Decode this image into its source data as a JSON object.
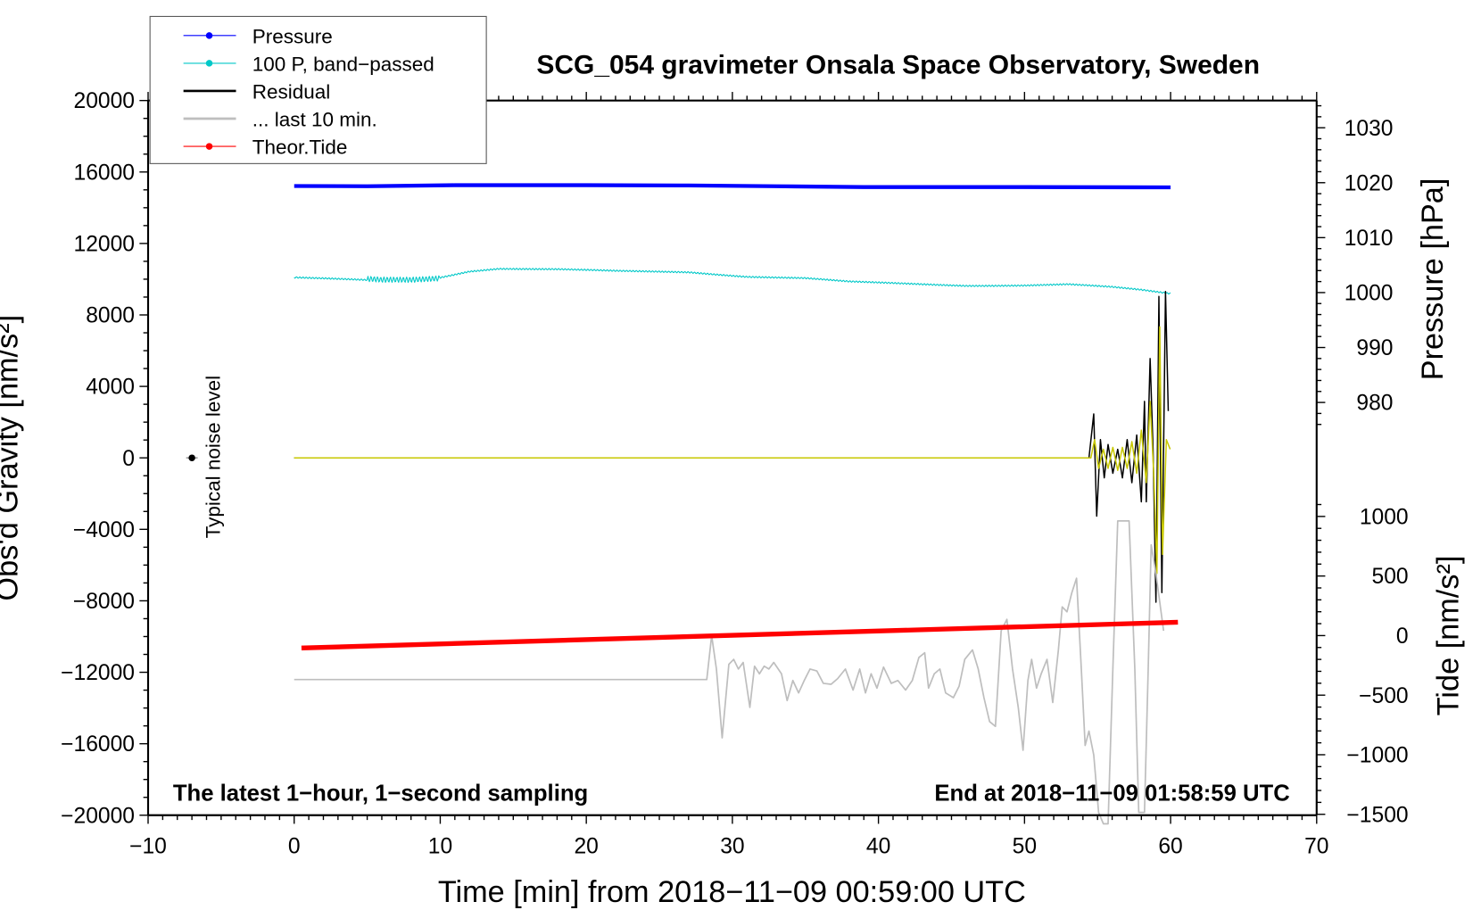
{
  "chart_data": {
    "type": "line",
    "title": "SCG_054 gravimeter Onsala Space Observatory, Sweden",
    "xlabel": "Time [min] from 2018−11−09 00:59:00 UTC",
    "ylabel_left": "Obs'd Gravity [nm/s²]",
    "ylabel_right_top": "Pressure [hPa]",
    "ylabel_right_bottom": "Tide [nm/s²]",
    "xlim": [
      -10,
      70
    ],
    "ylim_left": [
      -20000,
      20000
    ],
    "pressure_axis": {
      "ticks": [
        980,
        990,
        1000,
        1010,
        1020,
        1030
      ],
      "unit": "hPa",
      "range_top": 1034.9
    },
    "tide_axis": {
      "ticks": [
        -1500,
        -1000,
        -500,
        0,
        500,
        1000
      ]
    },
    "x_ticks": [
      -10,
      0,
      10,
      20,
      30,
      40,
      50,
      60,
      70
    ],
    "x_tick_labels": [
      "−10",
      "0",
      "10",
      "20",
      "30",
      "40",
      "50",
      "60",
      "70"
    ],
    "y_ticks": [
      -20000,
      -16000,
      -12000,
      -8000,
      -4000,
      0,
      4000,
      8000,
      12000,
      16000,
      20000
    ],
    "y_tick_labels": [
      "−20000",
      "−16000",
      "−12000",
      "−8000",
      "−4000",
      "0",
      "4000",
      "8000",
      "12000",
      "16000",
      "20000"
    ],
    "tide_tick_labels": [
      "−1500",
      "−1000",
      "−500",
      "0",
      "500",
      "1000"
    ],
    "annotations": {
      "bottom_left": "The latest 1−hour, 1−second sampling",
      "bottom_right": "End at 2018−11−09 01:58:59 UTC",
      "noise_label": "Typical noise level"
    },
    "legend": {
      "placement": "top-left",
      "entries": [
        {
          "label": "Pressure",
          "color": "#0000ff",
          "marker": "dot"
        },
        {
          "label": "100 P, band−passed",
          "color": "#00c8c8",
          "marker": "dot"
        },
        {
          "label": "Residual",
          "color": "#000000",
          "marker": "line"
        },
        {
          "label": "... last 10 min.",
          "color": "#bebebe",
          "marker": "line"
        },
        {
          "label": "Theor.Tide",
          "color": "#ff0000",
          "marker": "dot"
        }
      ]
    },
    "series": [
      {
        "name": "Pressure",
        "axis": "pressure",
        "color": "#0000ff",
        "x": [
          0,
          5,
          11,
          20,
          27,
          33,
          39,
          45,
          50,
          60
        ],
        "y": [
          1019.4,
          1019.35,
          1019.55,
          1019.55,
          1019.5,
          1019.35,
          1019.2,
          1019.2,
          1019.2,
          1019.15
        ]
      },
      {
        "name": "100 P, band−passed",
        "axis": "gravity",
        "color": "#00c8c8",
        "x": [
          0,
          3,
          6,
          8,
          10,
          12,
          14,
          18,
          22,
          27,
          31,
          35,
          38,
          42,
          46,
          50,
          53,
          56,
          58,
          60
        ],
        "y": [
          10100,
          10000,
          9900,
          9950,
          10100,
          10450,
          10600,
          10550,
          10450,
          10400,
          10150,
          10050,
          9850,
          9750,
          9650,
          9650,
          9700,
          9550,
          9400,
          9200
        ]
      },
      {
        "name": "Residual",
        "axis": "gravity",
        "color": "#000000",
        "x": [
          0,
          54.41,
          54.74,
          54.94,
          55.2,
          55.46,
          55.72,
          56.05,
          56.38,
          56.7,
          57.03,
          57.35,
          57.68,
          58.0,
          58.21,
          58.34,
          58.6,
          58.8,
          59.0,
          59.2,
          59.4,
          59.65,
          59.84
        ],
        "y": [
          0,
          0,
          2460,
          -3260,
          1020,
          -1120,
          750,
          -860,
          480,
          -1120,
          1020,
          -1390,
          1280,
          -2460,
          3160,
          -2460,
          5560,
          480,
          -8080,
          9040,
          -7540,
          9310,
          2620
        ]
      },
      {
        "name": "",
        "axis": "gravity",
        "color": "#c8c800",
        "x": [
          0,
          54.54,
          54.8,
          55.07,
          55.4,
          55.72,
          56.05,
          56.38,
          56.7,
          57.03,
          57.35,
          57.68,
          58.0,
          58.34,
          58.6,
          58.86,
          59.06,
          59.26,
          59.45,
          59.71,
          59.97
        ],
        "y": [
          0,
          0,
          1020,
          -590,
          480,
          -590,
          590,
          -700,
          590,
          -590,
          910,
          -860,
          1550,
          -1390,
          3160,
          -1120,
          -6470,
          7330,
          -5400,
          1020,
          480
        ]
      },
      {
        "name": "... last 10 min.",
        "axis": "tide",
        "color": "#bebebe",
        "x": [
          0,
          28.25,
          28.58,
          28.91,
          29.3,
          29.76,
          30.09,
          30.41,
          30.74,
          31.2,
          31.52,
          31.85,
          32.18,
          32.5,
          32.83,
          33.36,
          33.75,
          34.14,
          34.53,
          34.92,
          35.32,
          35.78,
          36.23,
          36.76,
          37.21,
          37.74,
          38.26,
          38.72,
          39.11,
          39.5,
          39.9,
          40.35,
          40.88,
          41.33,
          41.86,
          42.32,
          42.77,
          43.17,
          43.43,
          43.82,
          44.21,
          44.6,
          45.13,
          45.52,
          45.91,
          46.44,
          46.83,
          47.22,
          47.61,
          48.01,
          48.4,
          48.79,
          49.18,
          49.57,
          49.9,
          50.23,
          50.49,
          50.82,
          51.14,
          51.54,
          51.93,
          52.32,
          52.58,
          52.91,
          53.24,
          53.56,
          53.89,
          54.15,
          54.41,
          54.74,
          55.07,
          55.4,
          55.72,
          56.05,
          56.38,
          57.16,
          57.55,
          57.82,
          58.21,
          58.47,
          58.67,
          59.0,
          59.52
        ],
        "y": [
          -369,
          -369,
          0,
          -281,
          -858,
          -241,
          -200,
          -281,
          -225,
          -602,
          -257,
          -321,
          -257,
          -281,
          -225,
          -321,
          -545,
          -377,
          -481,
          -377,
          -281,
          -297,
          -401,
          -409,
          -361,
          -281,
          -457,
          -281,
          -481,
          -321,
          -441,
          -265,
          -401,
          -377,
          -457,
          -377,
          -184,
          -144,
          -441,
          -321,
          -281,
          -481,
          -521,
          -425,
          -200,
          -120,
          -281,
          -521,
          -722,
          -762,
          40,
          136,
          -281,
          -602,
          -962,
          -377,
          -200,
          -441,
          -321,
          -200,
          -561,
          -120,
          241,
          200,
          361,
          481,
          -281,
          -922,
          -802,
          -1002,
          -1484,
          -1580,
          -1580,
          -281,
          962,
          962,
          -281,
          -1484,
          -1484,
          -281,
          762,
          521,
          40
        ]
      },
      {
        "name": "Theor.Tide",
        "axis": "tide",
        "color": "#ff0000",
        "x": [
          0.5,
          60.5
        ],
        "y": [
          -104,
          112
        ]
      }
    ],
    "noise_marker": {
      "x": -7,
      "y": 0
    }
  }
}
